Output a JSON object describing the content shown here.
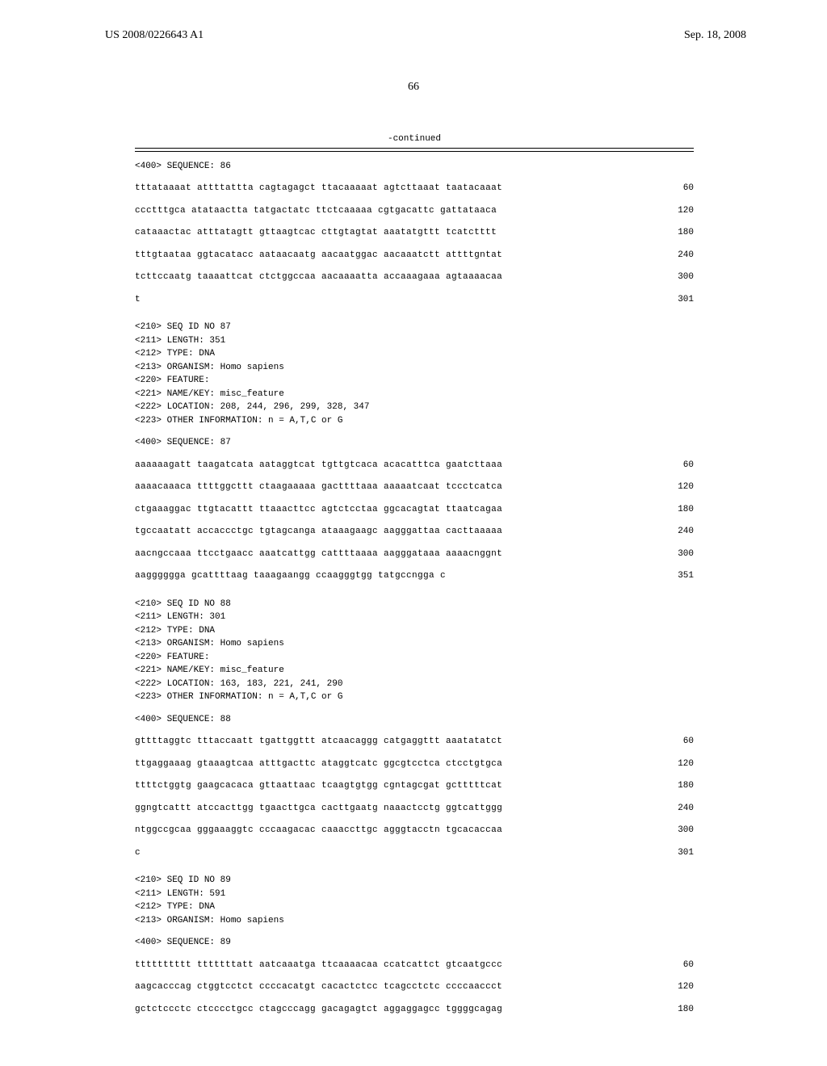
{
  "header": {
    "pub_number": "US 2008/0226643 A1",
    "pub_date": "Sep. 18, 2008",
    "page_number": "66"
  },
  "continued_label": "-continued",
  "blocks": [
    {
      "type": "seq_header",
      "text": "<400> SEQUENCE: 86"
    },
    {
      "type": "sequence",
      "lines": [
        {
          "text": "tttataaaat attttattta cagtagagct ttacaaaaat agtcttaaat taatacaaat",
          "pos": "60"
        },
        {
          "text": "ccctttgca atataactta tatgactatc ttctcaaaaa cgtgacattc gattataaca",
          "pos": "120"
        },
        {
          "text": "cataaactac atttatagtt gttaagtcac cttgtagtat aaatatgttt tcatctttt",
          "pos": "180"
        },
        {
          "text": "tttgtaataa ggtacatacc aataacaatg aacaatggac aacaaatctt attttgntat",
          "pos": "240"
        },
        {
          "text": "tcttccaatg taaaattcat ctctggccaa aacaaaatta accaaagaaa agtaaaacaa",
          "pos": "300"
        },
        {
          "text": "t",
          "pos": "301"
        }
      ]
    },
    {
      "type": "meta",
      "lines": [
        "<210> SEQ ID NO 87",
        "<211> LENGTH: 351",
        "<212> TYPE: DNA",
        "<213> ORGANISM: Homo sapiens",
        "<220> FEATURE:",
        "<221> NAME/KEY: misc_feature",
        "<222> LOCATION: 208, 244, 296, 299, 328, 347",
        "<223> OTHER INFORMATION: n = A,T,C or G"
      ]
    },
    {
      "type": "seq_header",
      "text": "<400> SEQUENCE: 87"
    },
    {
      "type": "sequence",
      "lines": [
        {
          "text": "aaaaaagatt taagatcata aataggtcat tgttgtcaca acacatttca gaatcttaaa",
          "pos": "60"
        },
        {
          "text": "aaaacaaaca ttttggcttt ctaagaaaaa gacttttaaa aaaaatcaat tccctcatca",
          "pos": "120"
        },
        {
          "text": "ctgaaaggac ttgtacattt ttaaacttcc agtctcctaa ggcacagtat ttaatcagaa",
          "pos": "180"
        },
        {
          "text": "tgccaatatt accaccctgc tgtagcanga ataaagaagc aagggattaa cacttaaaaa",
          "pos": "240"
        },
        {
          "text": "aacngccaaa ttcctgaacc aaatcattgg cattttaaaa aagggataaa aaaacnggnt",
          "pos": "300"
        },
        {
          "text": "aagggggga gcattttaag taaagaangg ccaagggtgg tatgccngga c",
          "pos": "351"
        }
      ]
    },
    {
      "type": "meta",
      "lines": [
        "<210> SEQ ID NO 88",
        "<211> LENGTH: 301",
        "<212> TYPE: DNA",
        "<213> ORGANISM: Homo sapiens",
        "<220> FEATURE:",
        "<221> NAME/KEY: misc_feature",
        "<222> LOCATION: 163, 183, 221, 241, 290",
        "<223> OTHER INFORMATION: n = A,T,C or G"
      ]
    },
    {
      "type": "seq_header",
      "text": "<400> SEQUENCE: 88"
    },
    {
      "type": "sequence",
      "lines": [
        {
          "text": "gttttaggtc tttaccaatt tgattggttt atcaacaggg catgaggttt aaatatatct",
          "pos": "60"
        },
        {
          "text": "ttgaggaaag gtaaagtcaa atttgacttc ataggtcatc ggcgtcctca ctcctgtgca",
          "pos": "120"
        },
        {
          "text": "ttttctggtg gaagcacaca gttaattaac tcaagtgtgg cgntagcgat gctttttcat",
          "pos": "180"
        },
        {
          "text": "ggngtcattt atccacttgg tgaacttgca cacttgaatg naaactcctg ggtcattggg",
          "pos": "240"
        },
        {
          "text": "ntggccgcaa gggaaaggtc cccaagacac caaaccttgc agggtacctn tgcacaccaa",
          "pos": "300"
        },
        {
          "text": "c",
          "pos": "301"
        }
      ]
    },
    {
      "type": "meta",
      "lines": [
        "<210> SEQ ID NO 89",
        "<211> LENGTH: 591",
        "<212> TYPE: DNA",
        "<213> ORGANISM: Homo sapiens"
      ]
    },
    {
      "type": "seq_header",
      "text": "<400> SEQUENCE: 89"
    },
    {
      "type": "sequence",
      "lines": [
        {
          "text": "tttttttttt tttttttatt aatcaaatga ttcaaaacaa ccatcattct gtcaatgccc",
          "pos": "60"
        },
        {
          "text": "aagcacccag ctggtcctct ccccacatgt cacactctcc tcagcctctc ccccaaccct",
          "pos": "120"
        },
        {
          "text": "gctctccctc ctcccctgcc ctagcccagg gacagagtct aggaggagcc tggggcagag",
          "pos": "180"
        }
      ]
    }
  ]
}
